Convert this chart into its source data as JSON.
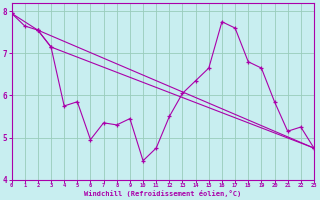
{
  "bg_color": "#c8eef0",
  "line_color": "#aa00aa",
  "grid_color": "#99ccbb",
  "xlabel": "Windchill (Refroidissement éolien,°C)",
  "xlim": [
    0,
    23
  ],
  "ylim": [
    4,
    8.2
  ],
  "yticks": [
    4,
    5,
    6,
    7,
    8
  ],
  "xticks": [
    0,
    1,
    2,
    3,
    4,
    5,
    6,
    7,
    8,
    9,
    10,
    11,
    12,
    13,
    14,
    15,
    16,
    17,
    18,
    19,
    20,
    21,
    22,
    23
  ],
  "line1_x": [
    0,
    1,
    2,
    3,
    4,
    5,
    6,
    7,
    8,
    9,
    10,
    11,
    12,
    13,
    14,
    15,
    16,
    17,
    18,
    19,
    20,
    21,
    22,
    23
  ],
  "line1_y": [
    7.95,
    7.65,
    7.55,
    7.15,
    5.75,
    5.85,
    4.95,
    5.35,
    5.3,
    5.45,
    4.45,
    4.75,
    5.5,
    6.05,
    6.35,
    6.65,
    7.75,
    7.6,
    6.8,
    6.65,
    5.85,
    5.15,
    5.25,
    4.75
  ],
  "line2_x": [
    0,
    2,
    23
  ],
  "line2_y": [
    7.95,
    7.55,
    4.75
  ],
  "line3_x": [
    2,
    3,
    23
  ],
  "line3_y": [
    7.55,
    7.15,
    4.75
  ]
}
